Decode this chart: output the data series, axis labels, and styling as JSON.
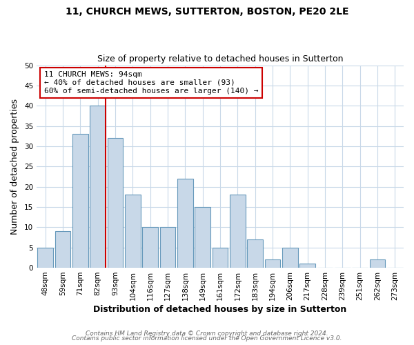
{
  "title": "11, CHURCH MEWS, SUTTERTON, BOSTON, PE20 2LE",
  "subtitle": "Size of property relative to detached houses in Sutterton",
  "xlabel": "Distribution of detached houses by size in Sutterton",
  "ylabel": "Number of detached properties",
  "bar_color": "#c8d8e8",
  "bar_edge_color": "#6699bb",
  "categories": [
    "48sqm",
    "59sqm",
    "71sqm",
    "82sqm",
    "93sqm",
    "104sqm",
    "116sqm",
    "127sqm",
    "138sqm",
    "149sqm",
    "161sqm",
    "172sqm",
    "183sqm",
    "194sqm",
    "206sqm",
    "217sqm",
    "228sqm",
    "239sqm",
    "251sqm",
    "262sqm",
    "273sqm"
  ],
  "values": [
    5,
    9,
    33,
    40,
    32,
    18,
    10,
    10,
    22,
    15,
    5,
    18,
    7,
    2,
    5,
    1,
    0,
    0,
    0,
    2,
    0
  ],
  "ylim": [
    0,
    50
  ],
  "yticks": [
    0,
    5,
    10,
    15,
    20,
    25,
    30,
    35,
    40,
    45,
    50
  ],
  "property_line_color": "#cc0000",
  "annotation_line1": "11 CHURCH MEWS: 94sqm",
  "annotation_line2": "← 40% of detached houses are smaller (93)",
  "annotation_line3": "60% of semi-detached houses are larger (140) →",
  "annotation_box_color": "#ffffff",
  "annotation_box_edge_color": "#cc0000",
  "footer_line1": "Contains HM Land Registry data © Crown copyright and database right 2024.",
  "footer_line2": "Contains public sector information licensed under the Open Government Licence v3.0.",
  "background_color": "#ffffff",
  "grid_color": "#c8d8e8",
  "title_fontsize": 10,
  "subtitle_fontsize": 9,
  "axis_label_fontsize": 9,
  "tick_fontsize": 7.5,
  "annotation_fontsize": 8,
  "footer_fontsize": 6.5
}
